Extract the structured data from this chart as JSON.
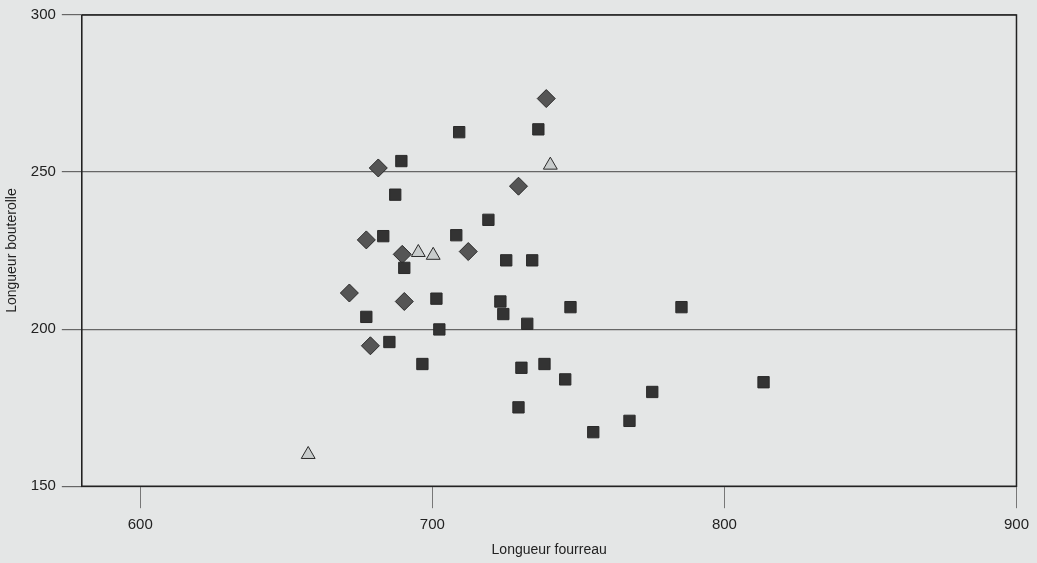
{
  "chart_data": {
    "type": "scatter",
    "xlabel": "Longueur fourreau",
    "ylabel": "Longueur bouterolle",
    "xlim": [
      580,
      900
    ],
    "xticks": [
      600,
      700,
      800,
      900
    ],
    "ylim": [
      150,
      300
    ],
    "yticks": [
      150,
      200,
      250,
      300
    ],
    "grid": "y",
    "series": [
      {
        "color": "#333333",
        "marker": "square",
        "x": [
          709.2,
          736.3,
          689.4,
          687.3,
          719.2,
          683.2,
          708.2,
          690.4,
          725.3,
          734.2,
          701.4,
          723.3,
          724.3,
          747.3,
          677.4,
          702.4,
          732.5,
          685.3,
          696.6,
          730.5,
          738.4,
          745.5,
          729.5,
          755.1,
          785.3,
          813.4,
          775.3,
          767.5
        ],
        "values": [
          262.7,
          263.6,
          253.5,
          242.8,
          234.8,
          229.6,
          229.9,
          219.5,
          221.9,
          221.9,
          209.7,
          208.8,
          204.8,
          207.0,
          203.9,
          199.9,
          201.7,
          195.9,
          188.9,
          187.7,
          188.9,
          184.0,
          175.1,
          167.2,
          207.0,
          183.1,
          180.0,
          170.8
        ]
      },
      {
        "color": "#555555",
        "marker": "diamond",
        "x": [
          739,
          681.5,
          729.5,
          677.4,
          689.7,
          712.3,
          671.6,
          690.4,
          678.8
        ],
        "values": [
          273.4,
          251.3,
          245.5,
          228.4,
          223.8,
          224.7,
          211.5,
          208.8,
          194.7
        ]
      },
      {
        "color": "#c8cccc",
        "marker": "triangle",
        "x": [
          740.4,
          695.2,
          700.3,
          657.5
        ],
        "values": [
          252.2,
          224.4,
          223.5,
          160.1
        ]
      }
    ]
  }
}
